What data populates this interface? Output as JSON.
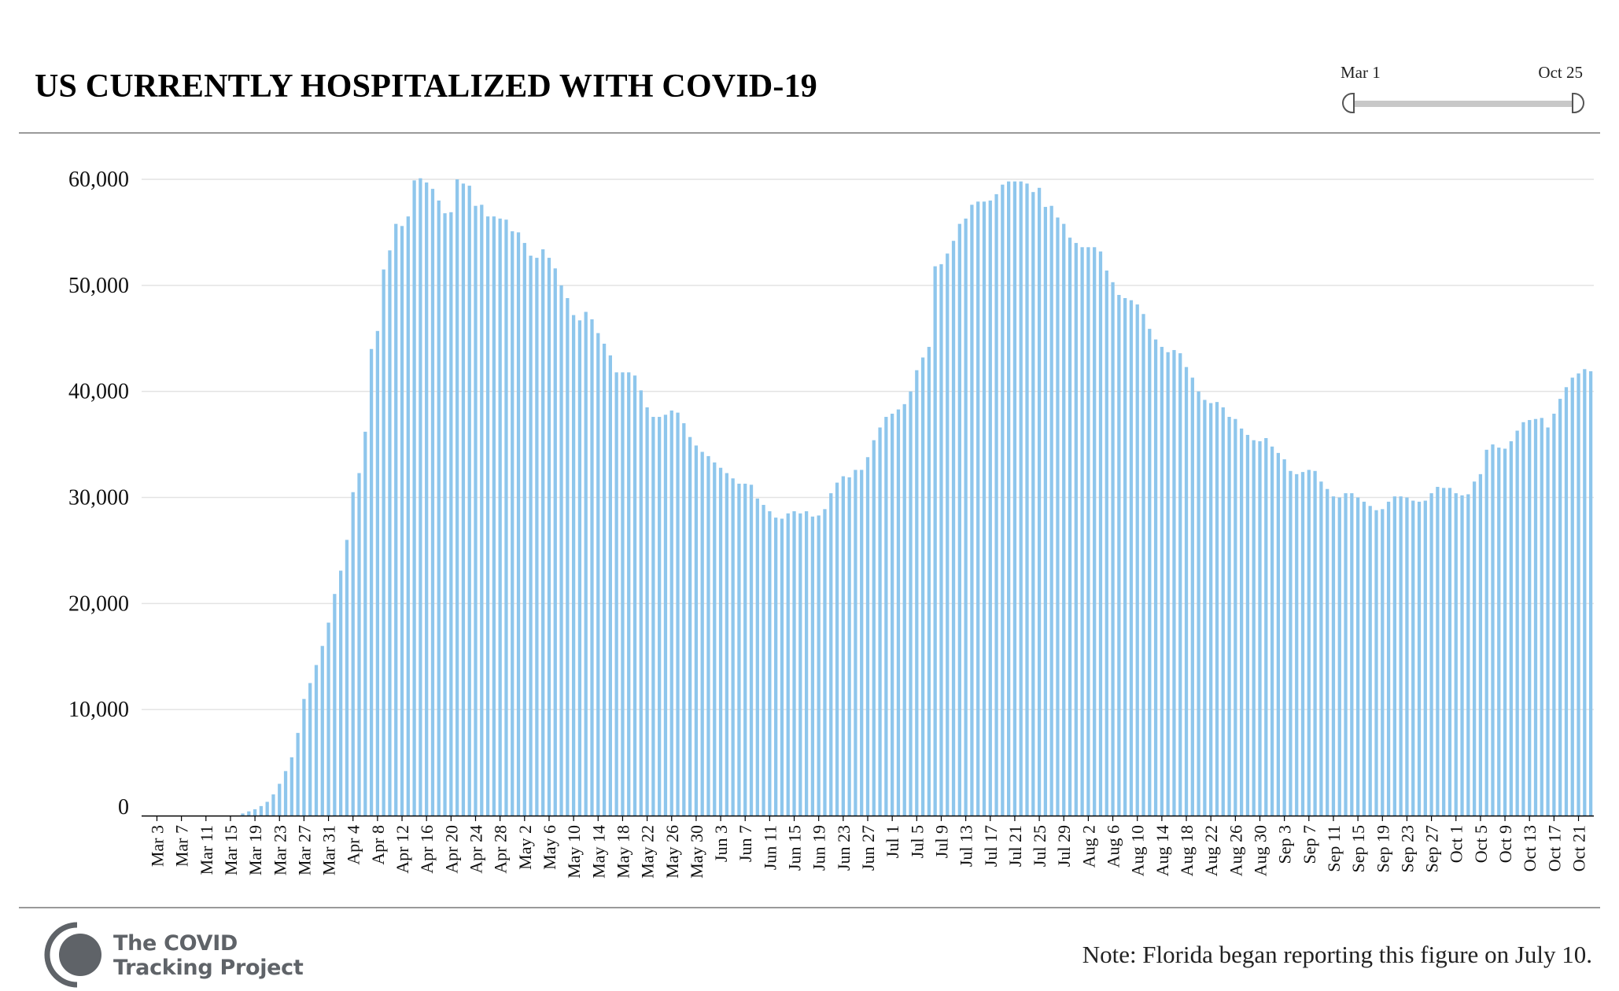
{
  "header": {
    "title": "US CURRENTLY HOSPITALIZED WITH COVID-19"
  },
  "range_slider": {
    "start_label": "Mar 1",
    "end_label": "Oct 25"
  },
  "footer": {
    "note": "Note: Florida began reporting this figure on July 10.",
    "logo_text_line1": "The COVID",
    "logo_text_line2": "Tracking Project"
  },
  "colors": {
    "bar": "#8ec6ec",
    "grid": "#e3e3e3",
    "axis": "#000000",
    "logo": "#5f6368"
  },
  "chart_data": {
    "type": "bar",
    "title": "US CURRENTLY HOSPITALIZED WITH COVID-19",
    "xlabel": "",
    "ylabel": "",
    "ylim": [
      0,
      60000
    ],
    "y_ticks": [
      0,
      10000,
      20000,
      30000,
      40000,
      50000,
      60000
    ],
    "y_tick_labels": [
      "0",
      "10,000",
      "20,000",
      "30,000",
      "40,000",
      "50,000",
      "60,000"
    ],
    "x_tick_labels": [
      "Mar 3",
      "Mar 7",
      "Mar 11",
      "Mar 15",
      "Mar 19",
      "Mar 23",
      "Mar 27",
      "Mar 31",
      "Apr 4",
      "Apr 8",
      "Apr 12",
      "Apr 16",
      "Apr 20",
      "Apr 24",
      "Apr 28",
      "May 2",
      "May 6",
      "May 10",
      "May 14",
      "May 18",
      "May 22",
      "May 26",
      "May 30",
      "Jun 3",
      "Jun 7",
      "Jun 11",
      "Jun 15",
      "Jun 19",
      "Jun 23",
      "Jun 27",
      "Jul 1",
      "Jul 5",
      "Jul 9",
      "Jul 13",
      "Jul 17",
      "Jul 21",
      "Jul 25",
      "Jul 29",
      "Aug 2",
      "Aug 6",
      "Aug 10",
      "Aug 14",
      "Aug 18",
      "Aug 22",
      "Aug 26",
      "Aug 30",
      "Sep 3",
      "Sep 7",
      "Sep 11",
      "Sep 15",
      "Sep 19",
      "Sep 23",
      "Sep 27",
      "Oct 1",
      "Oct 5",
      "Oct 9",
      "Oct 13",
      "Oct 17",
      "Oct 21"
    ],
    "first_category": "Mar 1",
    "last_category": "Oct 25",
    "grid": true,
    "legend": "none",
    "values": [
      0,
      0,
      0,
      0,
      0,
      0,
      0,
      0,
      0,
      0,
      0,
      0,
      0,
      0,
      0,
      0,
      200,
      400,
      600,
      900,
      1300,
      2000,
      3000,
      4200,
      5500,
      7800,
      11000,
      12500,
      14200,
      16000,
      18200,
      20900,
      23100,
      26000,
      30500,
      32300,
      36200,
      44000,
      45700,
      51500,
      53300,
      55800,
      55600,
      56500,
      59900,
      60100,
      59700,
      59100,
      58000,
      56800,
      56900,
      60000,
      59600,
      59400,
      57500,
      57600,
      56500,
      56500,
      56300,
      56200,
      55100,
      55000,
      54000,
      52800,
      52600,
      53400,
      52600,
      51600,
      50000,
      48800,
      47200,
      46700,
      47500,
      46800,
      45500,
      44500,
      43400,
      41800,
      41800,
      41800,
      41500,
      40100,
      38500,
      37600,
      37600,
      37800,
      38200,
      38000,
      37000,
      35700,
      34900,
      34300,
      33900,
      33300,
      32800,
      32300,
      31800,
      31300,
      31300,
      31200,
      29900,
      29300,
      28700,
      28100,
      28000,
      28500,
      28700,
      28500,
      28700,
      28200,
      28300,
      28900,
      30400,
      31400,
      32000,
      31900,
      32600,
      32600,
      33800,
      35400,
      36600,
      37600,
      37900,
      38300,
      38800,
      40000,
      42000,
      43200,
      44200,
      51800,
      52000,
      53000,
      54200,
      55800,
      56300,
      57600,
      57900,
      57900,
      58000,
      58600,
      59500,
      59800,
      59800,
      59800,
      59600,
      58800,
      59200,
      57400,
      57500,
      56400,
      55800,
      54500,
      54000,
      53600,
      53600,
      53600,
      53200,
      51400,
      50300,
      49100,
      48800,
      48600,
      48200,
      47300,
      45900,
      44900,
      44200,
      43700,
      43900,
      43600,
      42300,
      41300,
      40000,
      39200,
      38900,
      39000,
      38500,
      37600,
      37400,
      36500,
      35900,
      35400,
      35300,
      35600,
      34800,
      34200,
      33600,
      32500,
      32200,
      32400,
      32600,
      32500,
      31500,
      30800,
      30100,
      30000,
      30400,
      30400,
      30000,
      29600,
      29200,
      28800,
      28900,
      29600,
      30100,
      30100,
      30000,
      29700,
      29600,
      29700,
      30400,
      31000,
      30900,
      30900,
      30400,
      30200,
      30300,
      31500,
      32200,
      34500,
      35000,
      34700,
      34600,
      35300,
      36300,
      37100,
      37300,
      37400,
      37500,
      36600,
      37900,
      39300,
      40400,
      41300,
      41700,
      42100,
      41900
    ]
  }
}
